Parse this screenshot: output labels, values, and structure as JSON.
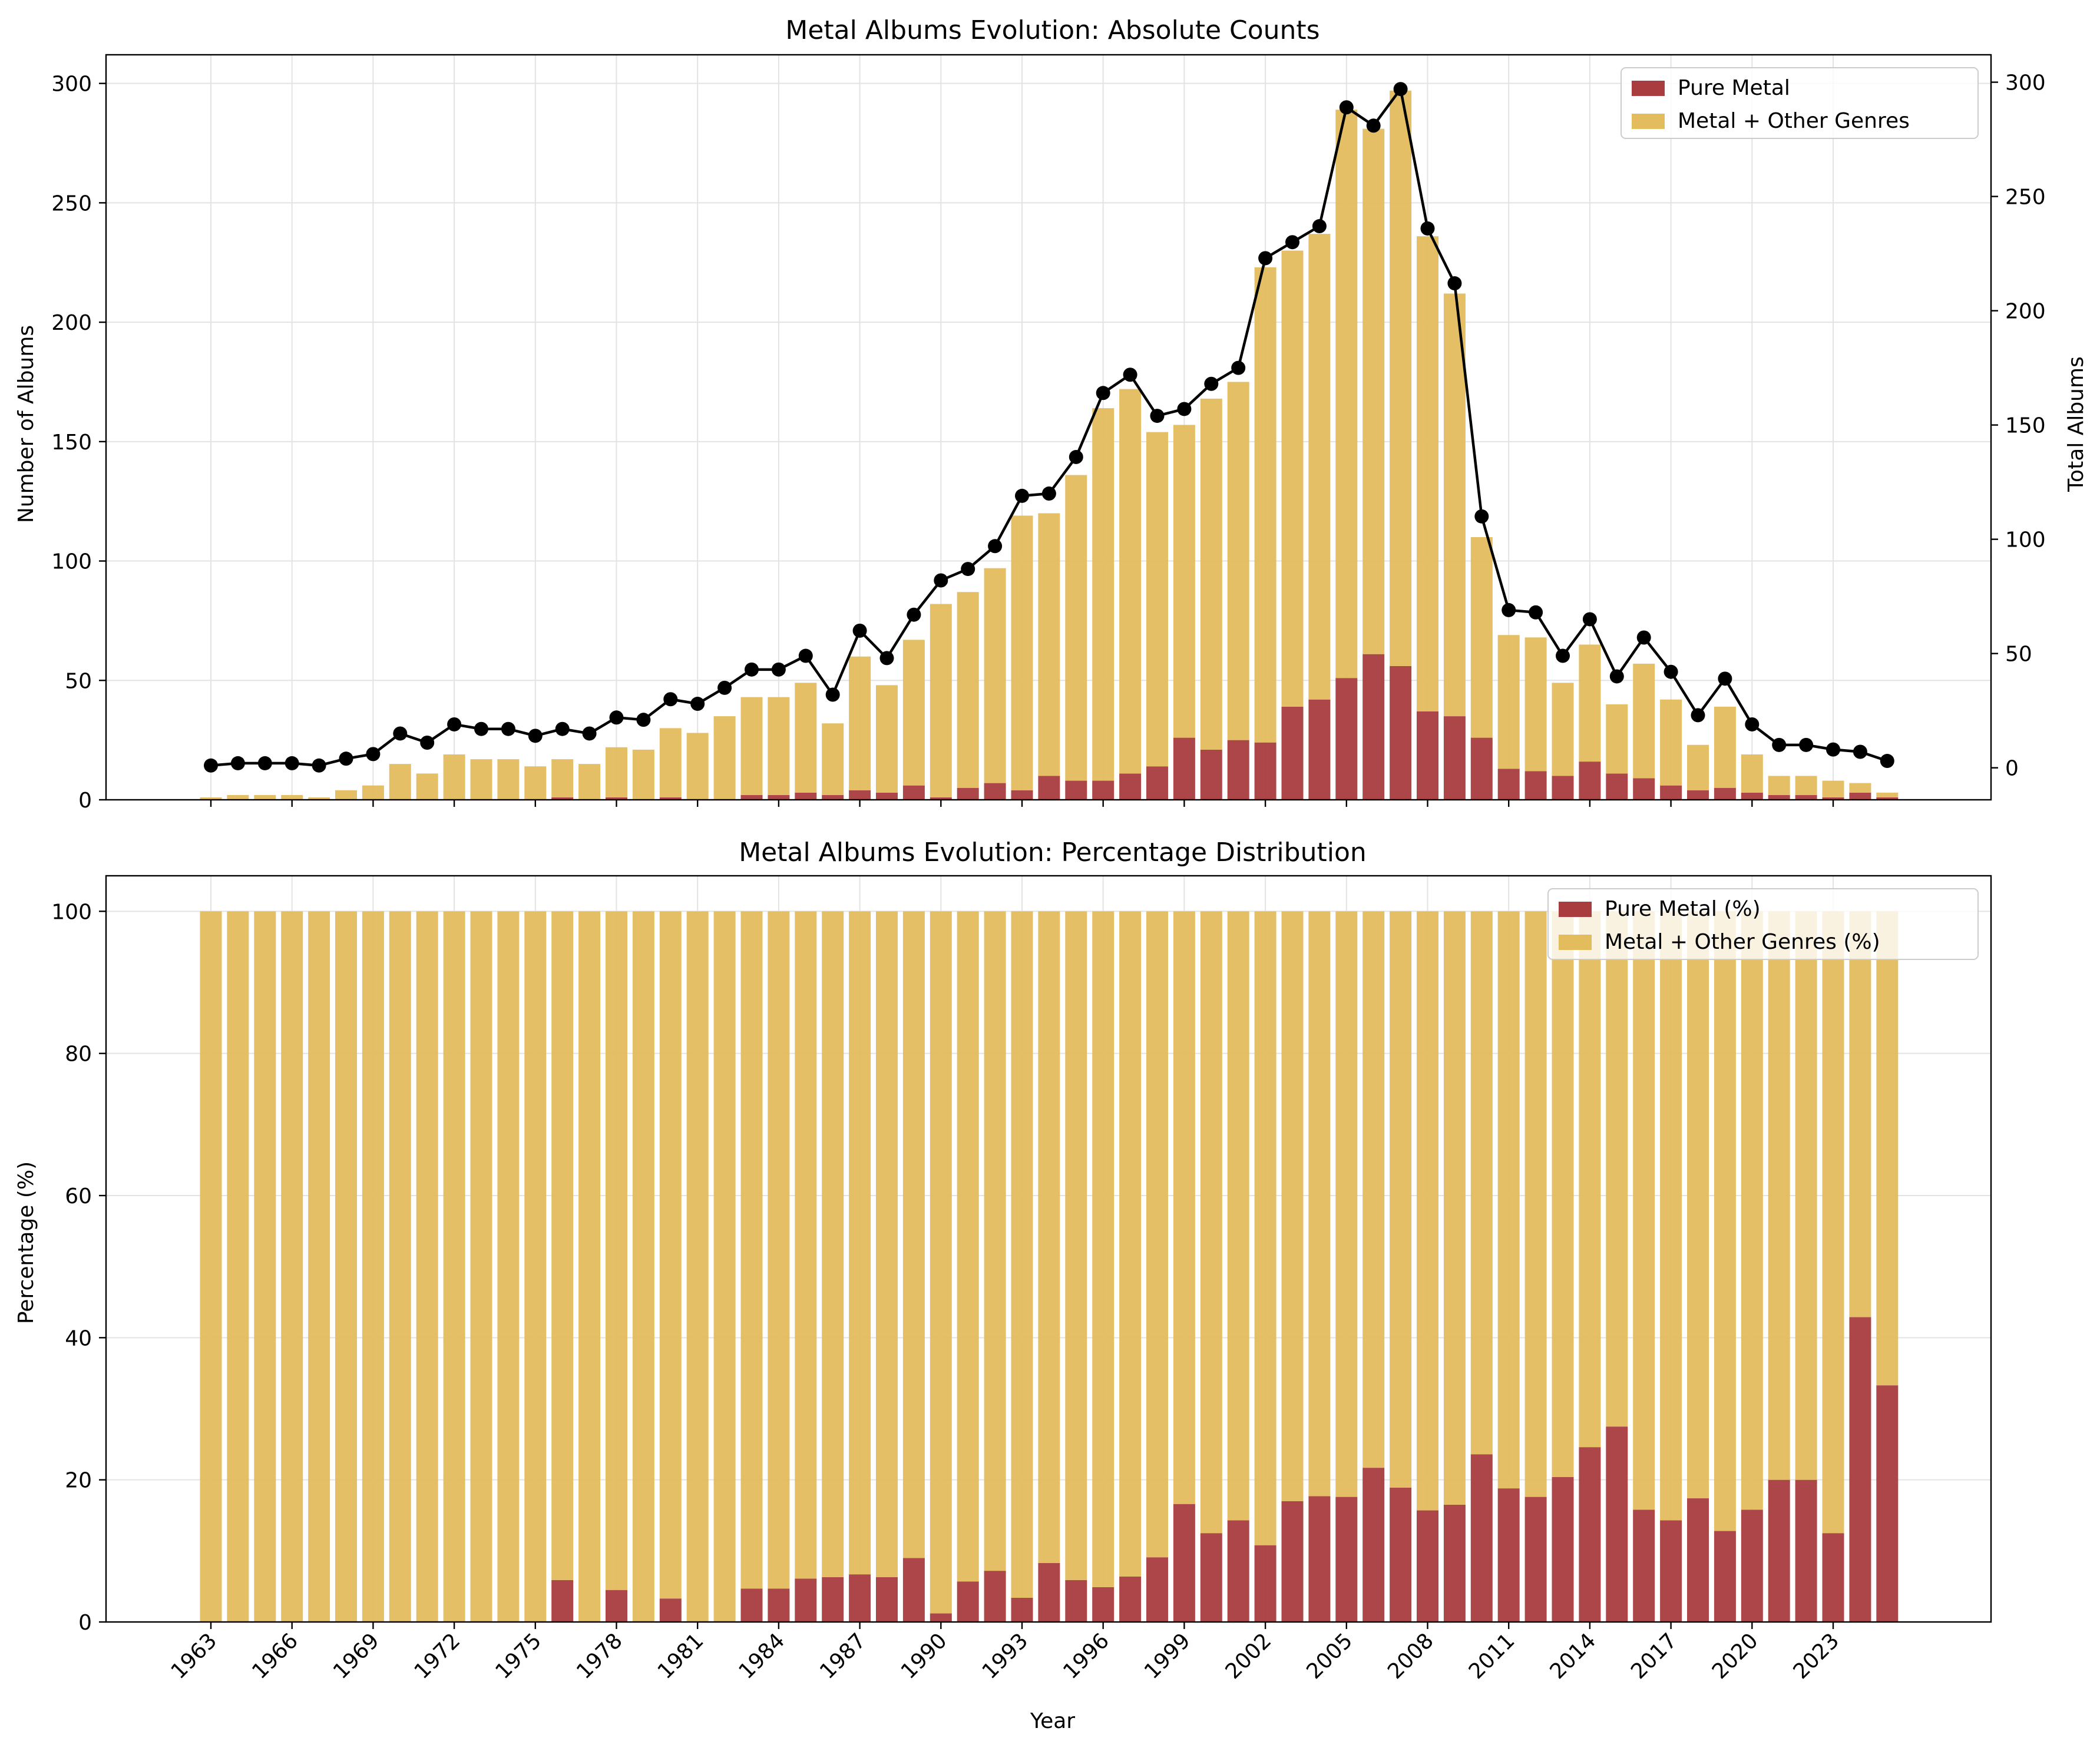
{
  "chart_data": [
    {
      "type": "bar",
      "stacked": true,
      "title": "Metal Albums Evolution: Absolute Counts",
      "xlabel": "",
      "ylabel": "Number of Albums",
      "y2label": "Total Albums",
      "ylim": [
        0,
        312
      ],
      "y2lim": [
        -14,
        312
      ],
      "yticks": [
        0,
        50,
        100,
        150,
        200,
        250,
        300
      ],
      "y2ticks": [
        0,
        50,
        100,
        150,
        200,
        250,
        300
      ],
      "grid": true,
      "legend": "top-right",
      "x": [
        1963,
        1964,
        1965,
        1966,
        1967,
        1968,
        1969,
        1970,
        1971,
        1972,
        1973,
        1974,
        1975,
        1976,
        1977,
        1978,
        1979,
        1980,
        1981,
        1982,
        1983,
        1984,
        1985,
        1986,
        1987,
        1988,
        1989,
        1990,
        1991,
        1992,
        1993,
        1994,
        1995,
        1996,
        1997,
        1998,
        1999,
        2000,
        2001,
        2002,
        2003,
        2004,
        2005,
        2006,
        2007,
        2008,
        2009,
        2010,
        2011,
        2012,
        2013,
        2014,
        2015,
        2016,
        2017,
        2018,
        2019,
        2020,
        2021,
        2022,
        2023,
        2024,
        2025
      ],
      "xticks": [
        "1963",
        "1966",
        "1969",
        "1972",
        "1975",
        "1978",
        "1981",
        "1984",
        "1987",
        "1990",
        "1993",
        "1996",
        "1999",
        "2002",
        "2005",
        "2008",
        "2011",
        "2014",
        "2017",
        "2020",
        "2023"
      ],
      "series": [
        {
          "name": "Pure Metal",
          "color": "#a83c3f",
          "values": [
            0,
            0,
            0,
            0,
            0,
            0,
            0,
            0,
            0,
            0,
            0,
            0,
            0,
            1,
            0,
            1,
            0,
            1,
            0,
            0,
            2,
            2,
            3,
            2,
            4,
            3,
            6,
            1,
            5,
            7,
            4,
            10,
            8,
            8,
            11,
            14,
            26,
            21,
            25,
            24,
            39,
            42,
            51,
            61,
            56,
            37,
            35,
            26,
            13,
            12,
            10,
            16,
            11,
            9,
            6,
            4,
            5,
            3,
            2,
            2,
            1,
            3,
            1
          ]
        },
        {
          "name": "Metal + Other Genres",
          "color": "#e3bc5d",
          "values": [
            1,
            2,
            2,
            2,
            1,
            4,
            6,
            15,
            11,
            19,
            17,
            17,
            14,
            16,
            15,
            21,
            21,
            29,
            28,
            35,
            41,
            41,
            46,
            30,
            56,
            45,
            61,
            81,
            82,
            90,
            115,
            110,
            128,
            156,
            161,
            140,
            131,
            147,
            150,
            199,
            191,
            195,
            238,
            220,
            241,
            199,
            177,
            84,
            56,
            56,
            39,
            49,
            29,
            48,
            36,
            19,
            34,
            16,
            8,
            8,
            7,
            4,
            2
          ]
        },
        {
          "name": "Total Albums",
          "color": "#000000",
          "values": [
            1,
            2,
            2,
            2,
            1,
            4,
            6,
            15,
            11,
            19,
            17,
            17,
            14,
            17,
            15,
            22,
            21,
            30,
            28,
            35,
            43,
            43,
            49,
            32,
            60,
            48,
            67,
            82,
            87,
            97,
            119,
            120,
            136,
            164,
            172,
            154,
            157,
            168,
            175,
            223,
            230,
            237,
            289,
            281,
            297,
            236,
            212,
            110,
            69,
            68,
            49,
            65,
            40,
            57,
            42,
            23,
            39,
            19,
            10,
            10,
            8,
            7,
            3
          ]
        }
      ]
    },
    {
      "type": "bar",
      "stacked": true,
      "title": "Metal Albums Evolution: Percentage Distribution",
      "xlabel": "Year",
      "ylabel": "Percentage (%)",
      "ylim": [
        0,
        105
      ],
      "yticks": [
        0,
        20,
        40,
        60,
        80,
        100
      ],
      "grid": true,
      "legend": "top-right",
      "x": [
        1963,
        1964,
        1965,
        1966,
        1967,
        1968,
        1969,
        1970,
        1971,
        1972,
        1973,
        1974,
        1975,
        1976,
        1977,
        1978,
        1979,
        1980,
        1981,
        1982,
        1983,
        1984,
        1985,
        1986,
        1987,
        1988,
        1989,
        1990,
        1991,
        1992,
        1993,
        1994,
        1995,
        1996,
        1997,
        1998,
        1999,
        2000,
        2001,
        2002,
        2003,
        2004,
        2005,
        2006,
        2007,
        2008,
        2009,
        2010,
        2011,
        2012,
        2013,
        2014,
        2015,
        2016,
        2017,
        2018,
        2019,
        2020,
        2021,
        2022,
        2023,
        2024,
        2025
      ],
      "xticks": [
        "1963",
        "1966",
        "1969",
        "1972",
        "1975",
        "1978",
        "1981",
        "1984",
        "1987",
        "1990",
        "1993",
        "1996",
        "1999",
        "2002",
        "2005",
        "2008",
        "2011",
        "2014",
        "2017",
        "2020",
        "2023"
      ],
      "series": [
        {
          "name": "Pure Metal (%)",
          "color": "#a83c3f",
          "values": [
            0,
            0,
            0,
            0,
            0,
            0,
            0,
            0,
            0,
            0,
            0,
            0,
            0,
            5.9,
            0,
            4.5,
            0,
            3.3,
            0,
            0,
            4.7,
            4.7,
            6.1,
            6.3,
            6.7,
            6.3,
            9.0,
            1.2,
            5.7,
            7.2,
            3.4,
            8.3,
            5.9,
            4.9,
            6.4,
            9.1,
            16.6,
            12.5,
            14.3,
            10.8,
            17.0,
            17.7,
            17.6,
            21.7,
            18.9,
            15.7,
            16.5,
            23.6,
            18.8,
            17.6,
            20.4,
            24.6,
            27.5,
            15.8,
            14.3,
            17.4,
            12.8,
            15.8,
            20.0,
            20.0,
            12.5,
            42.9,
            33.3
          ]
        },
        {
          "name": "Metal + Other Genres (%)",
          "color": "#e3bc5d",
          "values": [
            100,
            100,
            100,
            100,
            100,
            100,
            100,
            100,
            100,
            100,
            100,
            100,
            100,
            94.1,
            100,
            95.5,
            100,
            96.7,
            100,
            100,
            95.3,
            95.3,
            93.9,
            93.7,
            93.3,
            93.7,
            91.0,
            98.8,
            94.3,
            92.8,
            96.6,
            91.7,
            94.1,
            95.1,
            93.6,
            90.9,
            83.4,
            87.5,
            85.7,
            89.2,
            83.0,
            82.3,
            82.4,
            78.3,
            81.1,
            84.3,
            83.5,
            76.4,
            81.2,
            82.4,
            79.6,
            75.4,
            72.5,
            84.2,
            85.7,
            82.6,
            87.2,
            84.2,
            80.0,
            80.0,
            87.5,
            57.1,
            66.7
          ]
        }
      ]
    }
  ]
}
